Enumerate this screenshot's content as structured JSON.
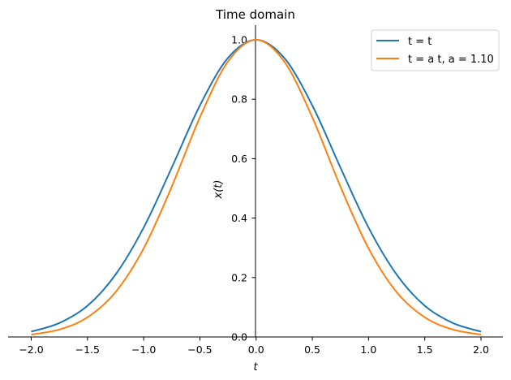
{
  "chart_data": {
    "type": "line",
    "title": "Time domain",
    "xlabel": "t",
    "ylabel": "x(t)",
    "xlim": [
      -2.2,
      2.2
    ],
    "ylim": [
      0.0,
      1.05
    ],
    "x_ticks": [
      -2.0,
      -1.5,
      -1.0,
      -0.5,
      0.0,
      0.5,
      1.0,
      1.5,
      2.0
    ],
    "x_tick_labels": [
      "−2.0",
      "−1.5",
      "−1.0",
      "−0.5",
      "0.0",
      "0.5",
      "1.0",
      "1.5",
      "2.0"
    ],
    "y_ticks": [
      0.0,
      0.2,
      0.4,
      0.6,
      0.8,
      1.0
    ],
    "y_tick_labels": [
      "0.0",
      "0.2",
      "0.4",
      "0.6",
      "0.8",
      "1.0"
    ],
    "grid": false,
    "legend_position": "top-right",
    "x": [
      -2.0,
      -1.75,
      -1.5,
      -1.25,
      -1.0,
      -0.75,
      -0.5,
      -0.25,
      0.0,
      0.25,
      0.5,
      0.75,
      1.0,
      1.25,
      1.5,
      1.75,
      2.0
    ],
    "series": [
      {
        "name": "t = t",
        "color": "#1f77b4",
        "values": [
          0.018,
          0.047,
          0.105,
          0.21,
          0.368,
          0.57,
          0.779,
          0.939,
          1.0,
          0.939,
          0.779,
          0.57,
          0.368,
          0.21,
          0.105,
          0.047,
          0.018
        ]
      },
      {
        "name": "t = a t, a = 1.10",
        "color": "#ff7f0e",
        "values": [
          0.008,
          0.025,
          0.066,
          0.151,
          0.298,
          0.506,
          0.739,
          0.927,
          1.0,
          0.927,
          0.739,
          0.506,
          0.298,
          0.151,
          0.066,
          0.025,
          0.008
        ]
      }
    ]
  }
}
